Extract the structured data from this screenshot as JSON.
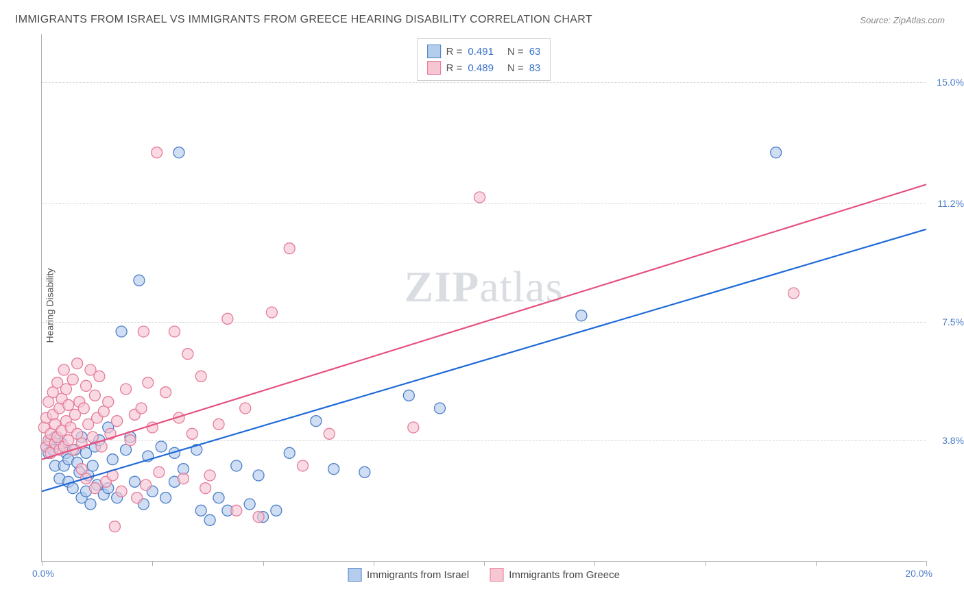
{
  "title": "IMMIGRANTS FROM ISRAEL VS IMMIGRANTS FROM GREECE HEARING DISABILITY CORRELATION CHART",
  "source_label": "Source:",
  "source_value": "ZipAtlas.com",
  "ylabel": "Hearing Disability",
  "watermark_bold": "ZIP",
  "watermark_rest": "atlas",
  "chart": {
    "type": "scatter",
    "xlim": [
      0,
      20
    ],
    "ylim": [
      0,
      16.5
    ],
    "x0_label": "0.0%",
    "xmax_label": "20.0%",
    "xtick_positions": [
      0,
      2.5,
      5,
      7.5,
      10,
      12.5,
      15,
      17.5,
      20
    ],
    "yticks": [
      {
        "v": 3.8,
        "label": "3.8%"
      },
      {
        "v": 7.5,
        "label": "7.5%"
      },
      {
        "v": 11.2,
        "label": "11.2%"
      },
      {
        "v": 15.0,
        "label": "15.0%"
      }
    ],
    "background_color": "#ffffff",
    "grid_color": "#d8d8d8",
    "marker_radius": 8,
    "marker_stroke_width": 1.3,
    "line_width": 2.2,
    "series": [
      {
        "name": "Immigrants from Israel",
        "fill": "#b5cdec",
        "stroke": "#4a7ec9",
        "line_color": "#1e6ad8",
        "R": "0.491",
        "N": "63",
        "regression": {
          "x1": 0,
          "y1": 2.2,
          "x2": 20,
          "y2": 10.4
        },
        "points": [
          [
            0.1,
            3.6
          ],
          [
            0.15,
            3.4
          ],
          [
            0.2,
            3.8
          ],
          [
            0.25,
            3.5
          ],
          [
            0.3,
            3.9
          ],
          [
            0.3,
            3.0
          ],
          [
            0.4,
            2.6
          ],
          [
            0.45,
            3.7
          ],
          [
            0.5,
            3.0
          ],
          [
            0.55,
            3.4
          ],
          [
            0.6,
            2.5
          ],
          [
            0.6,
            3.2
          ],
          [
            0.7,
            2.3
          ],
          [
            0.75,
            3.5
          ],
          [
            0.8,
            3.1
          ],
          [
            0.85,
            2.8
          ],
          [
            0.9,
            3.9
          ],
          [
            0.9,
            2.0
          ],
          [
            1.0,
            2.2
          ],
          [
            1.0,
            3.4
          ],
          [
            1.05,
            2.7
          ],
          [
            1.1,
            1.8
          ],
          [
            1.15,
            3.0
          ],
          [
            1.2,
            3.6
          ],
          [
            1.25,
            2.4
          ],
          [
            1.3,
            3.8
          ],
          [
            1.4,
            2.1
          ],
          [
            1.5,
            2.3
          ],
          [
            1.6,
            3.2
          ],
          [
            1.7,
            2.0
          ],
          [
            1.8,
            7.2
          ],
          [
            1.9,
            3.5
          ],
          [
            2.0,
            3.9
          ],
          [
            2.1,
            2.5
          ],
          [
            2.2,
            8.8
          ],
          [
            2.3,
            1.8
          ],
          [
            2.4,
            3.3
          ],
          [
            2.5,
            2.2
          ],
          [
            2.7,
            3.6
          ],
          [
            2.8,
            2.0
          ],
          [
            3.0,
            3.4
          ],
          [
            3.1,
            12.8
          ],
          [
            3.2,
            2.9
          ],
          [
            3.5,
            3.5
          ],
          [
            3.6,
            1.6
          ],
          [
            3.8,
            1.3
          ],
          [
            4.0,
            2.0
          ],
          [
            4.2,
            1.6
          ],
          [
            4.4,
            3.0
          ],
          [
            4.7,
            1.8
          ],
          [
            5.0,
            1.4
          ],
          [
            5.3,
            1.6
          ],
          [
            5.6,
            3.4
          ],
          [
            6.2,
            4.4
          ],
          [
            6.6,
            2.9
          ],
          [
            7.3,
            2.8
          ],
          [
            8.3,
            5.2
          ],
          [
            9.0,
            4.8
          ],
          [
            12.2,
            7.7
          ],
          [
            16.6,
            12.8
          ],
          [
            4.9,
            2.7
          ],
          [
            3.0,
            2.5
          ],
          [
            1.5,
            4.2
          ]
        ]
      },
      {
        "name": "Immigrants from Greece",
        "fill": "#f6c6d3",
        "stroke": "#e57a9a",
        "line_color": "#e6517e",
        "R": "0.489",
        "N": "83",
        "regression": {
          "x1": 0,
          "y1": 3.2,
          "x2": 20,
          "y2": 11.8
        },
        "points": [
          [
            0.05,
            4.2
          ],
          [
            0.1,
            3.6
          ],
          [
            0.1,
            4.5
          ],
          [
            0.15,
            3.8
          ],
          [
            0.15,
            5.0
          ],
          [
            0.2,
            4.0
          ],
          [
            0.2,
            3.4
          ],
          [
            0.25,
            4.6
          ],
          [
            0.25,
            5.3
          ],
          [
            0.3,
            3.7
          ],
          [
            0.3,
            4.3
          ],
          [
            0.35,
            5.6
          ],
          [
            0.35,
            3.9
          ],
          [
            0.4,
            4.8
          ],
          [
            0.4,
            3.5
          ],
          [
            0.45,
            5.1
          ],
          [
            0.45,
            4.1
          ],
          [
            0.5,
            6.0
          ],
          [
            0.5,
            3.6
          ],
          [
            0.55,
            4.4
          ],
          [
            0.55,
            5.4
          ],
          [
            0.6,
            3.8
          ],
          [
            0.6,
            4.9
          ],
          [
            0.65,
            4.2
          ],
          [
            0.7,
            5.7
          ],
          [
            0.7,
            3.5
          ],
          [
            0.75,
            4.6
          ],
          [
            0.8,
            6.2
          ],
          [
            0.8,
            4.0
          ],
          [
            0.85,
            5.0
          ],
          [
            0.9,
            3.7
          ],
          [
            0.95,
            4.8
          ],
          [
            1.0,
            5.5
          ],
          [
            1.0,
            2.6
          ],
          [
            1.05,
            4.3
          ],
          [
            1.1,
            6.0
          ],
          [
            1.15,
            3.9
          ],
          [
            1.2,
            5.2
          ],
          [
            1.2,
            2.3
          ],
          [
            1.25,
            4.5
          ],
          [
            1.3,
            5.8
          ],
          [
            1.35,
            3.6
          ],
          [
            1.4,
            4.7
          ],
          [
            1.45,
            2.5
          ],
          [
            1.5,
            5.0
          ],
          [
            1.55,
            4.0
          ],
          [
            1.6,
            2.7
          ],
          [
            1.65,
            1.1
          ],
          [
            1.7,
            4.4
          ],
          [
            1.8,
            2.2
          ],
          [
            1.9,
            5.4
          ],
          [
            2.0,
            3.8
          ],
          [
            2.1,
            4.6
          ],
          [
            2.15,
            2.0
          ],
          [
            2.25,
            4.8
          ],
          [
            2.3,
            7.2
          ],
          [
            2.35,
            2.4
          ],
          [
            2.4,
            5.6
          ],
          [
            2.5,
            4.2
          ],
          [
            2.6,
            12.8
          ],
          [
            2.65,
            2.8
          ],
          [
            2.8,
            5.3
          ],
          [
            3.0,
            7.2
          ],
          [
            3.1,
            4.5
          ],
          [
            3.2,
            2.6
          ],
          [
            3.3,
            6.5
          ],
          [
            3.4,
            4.0
          ],
          [
            3.6,
            5.8
          ],
          [
            3.7,
            2.3
          ],
          [
            3.8,
            2.7
          ],
          [
            4.0,
            4.3
          ],
          [
            4.2,
            7.6
          ],
          [
            4.4,
            1.6
          ],
          [
            4.6,
            4.8
          ],
          [
            4.9,
            1.4
          ],
          [
            5.2,
            7.8
          ],
          [
            5.6,
            9.8
          ],
          [
            5.9,
            3.0
          ],
          [
            6.5,
            4.0
          ],
          [
            8.4,
            4.2
          ],
          [
            9.9,
            11.4
          ],
          [
            17.0,
            8.4
          ],
          [
            0.9,
            2.9
          ]
        ]
      }
    ]
  }
}
